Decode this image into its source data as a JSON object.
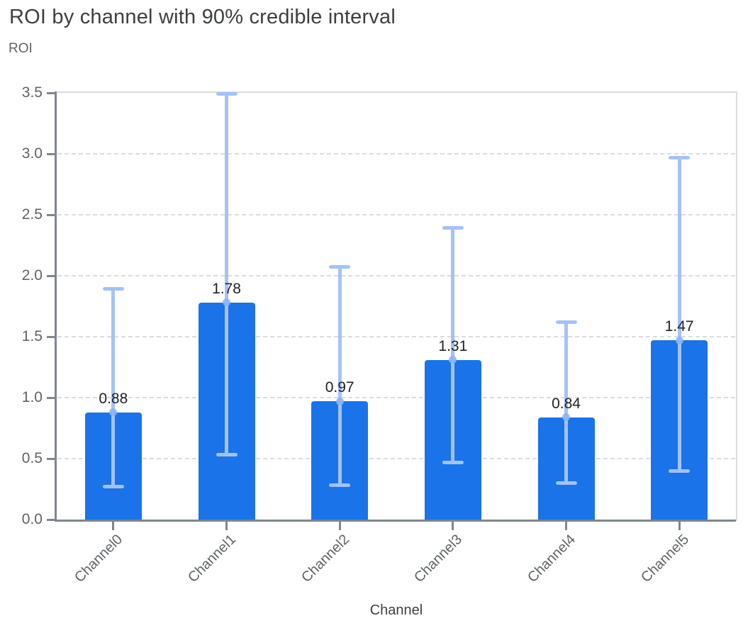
{
  "title": "ROI by channel with 90% credible interval",
  "y_axis_title": "ROI",
  "x_axis_title": "Channel",
  "colors": {
    "bar": "#1a73e8",
    "interval": "#a4c2f9",
    "marker": "#8ab4f8",
    "grid": "#dadce0",
    "plot_border": "#dadce0",
    "axis": "#80868b",
    "title_text": "#3c4043",
    "axis_title_text": "#3c4043",
    "tick_label_text": "#5f6368",
    "value_label_text": "#202124",
    "background": "#ffffff"
  },
  "chart_data": {
    "type": "bar",
    "title": "ROI by channel with 90% credible interval",
    "xlabel": "Channel",
    "ylabel": "ROI",
    "ylim": [
      0,
      3.5
    ],
    "grid": true,
    "legend": false,
    "y_ticks": [
      "0.0",
      "0.5",
      "1.0",
      "1.5",
      "2.0",
      "2.5",
      "3.0",
      "3.5"
    ],
    "categories": [
      "Channel0",
      "Channel1",
      "Channel2",
      "Channel3",
      "Channel4",
      "Channel5"
    ],
    "values": [
      0.88,
      1.78,
      0.97,
      1.31,
      0.84,
      1.47
    ],
    "value_labels": [
      "0.88",
      "1.78",
      "0.97",
      "1.31",
      "0.84",
      "1.47"
    ],
    "interval_name": "90% credible interval",
    "ci_lower": [
      0.27,
      0.53,
      0.28,
      0.47,
      0.3,
      0.4
    ],
    "ci_upper": [
      1.89,
      3.49,
      2.07,
      2.39,
      1.62,
      2.97
    ]
  }
}
